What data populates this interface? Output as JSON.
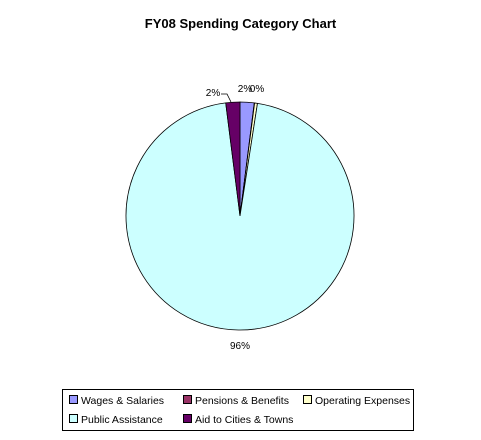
{
  "chart_data": {
    "type": "pie",
    "title": "FY08 Spending Category Chart",
    "slices": [
      {
        "name": "Wages & Salaries",
        "value": 2,
        "label": "2%",
        "color": "#9999FF"
      },
      {
        "name": "Pensions & Benefits",
        "value": 0.05,
        "label": "",
        "color": "#993366"
      },
      {
        "name": "Operating Expenses",
        "value": 0.4,
        "label": "0%",
        "color": "#FFFFCC"
      },
      {
        "name": "Public Assistance",
        "value": 95.55,
        "label": "96%",
        "color": "#CCFFFF"
      },
      {
        "name": "Aid to Cities & Towns",
        "value": 2,
        "label": "2%",
        "color": "#660066"
      }
    ],
    "legend_position": "bottom"
  }
}
